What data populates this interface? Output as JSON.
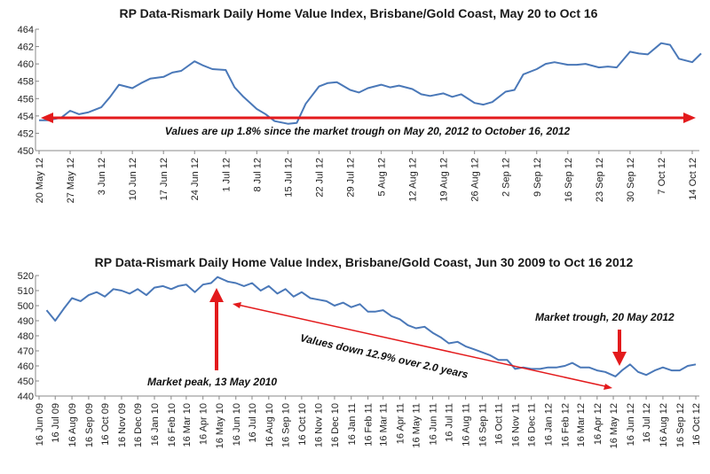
{
  "chart_data": [
    {
      "type": "line",
      "title": "RP Data-Rismark Daily Home Value Index, Brisbane/Gold Coast, May 20 to Oct 16",
      "xlabel": "",
      "ylabel": "",
      "ylim": [
        450,
        464
      ],
      "y_ticks": [
        "450",
        "452",
        "454",
        "456",
        "458",
        "460",
        "462",
        "464"
      ],
      "x_ticks": [
        "20 May 12",
        "27 May 12",
        "3 Jun 12",
        "10 Jun 12",
        "17 Jun 12",
        "24 Jun 12",
        "1 Jul 12",
        "8 Jul 12",
        "15 Jul 12",
        "22 Jul 12",
        "29 Jul 12",
        "5 Aug 12",
        "12 Aug 12",
        "19 Aug 12",
        "26 Aug 12",
        "2 Sep 12",
        "9 Sep 12",
        "16 Sep 12",
        "23 Sep 12",
        "30 Sep 12",
        "7 Oct 12",
        "14 Oct 12"
      ],
      "grid": false,
      "line_color": "#4a78b8",
      "series": [
        {
          "x": [
            "20 May 12",
            "22 May 12",
            "25 May 12",
            "27 May 12",
            "29 May 12",
            "31 May 12",
            "3 Jun 12",
            "5 Jun 12",
            "7 Jun 12",
            "10 Jun 12",
            "12 Jun 12",
            "14 Jun 12",
            "17 Jun 12",
            "19 Jun 12",
            "21 Jun 12",
            "24 Jun 12",
            "26 Jun 12",
            "28 Jun 12",
            "1 Jul 12",
            "3 Jul 12",
            "5 Jul 12",
            "8 Jul 12",
            "10 Jul 12",
            "12 Jul 12",
            "15 Jul 12",
            "17 Jul 12",
            "19 Jul 12",
            "22 Jul 12",
            "24 Jul 12",
            "26 Jul 12",
            "29 Jul 12",
            "31 Jul 12",
            "2 Aug 12",
            "5 Aug 12",
            "7 Aug 12",
            "9 Aug 12",
            "12 Aug 12",
            "14 Aug 12",
            "16 Aug 12",
            "19 Aug 12",
            "21 Aug 12",
            "23 Aug 12",
            "26 Aug 12",
            "28 Aug 12",
            "30 Aug 12",
            "2 Sep 12",
            "4 Sep 12",
            "6 Sep 12",
            "9 Sep 12",
            "11 Sep 12",
            "13 Sep 12",
            "16 Sep 12",
            "18 Sep 12",
            "20 Sep 12",
            "23 Sep 12",
            "25 Sep 12",
            "27 Sep 12",
            "30 Sep 12",
            "2 Oct 12",
            "4 Oct 12",
            "7 Oct 12",
            "9 Oct 12",
            "11 Oct 12",
            "14 Oct 12",
            "16 Oct 12"
          ],
          "values": [
            453.5,
            453.5,
            453.8,
            454.6,
            454.2,
            454.4,
            455.0,
            456.2,
            457.6,
            457.2,
            457.8,
            458.3,
            458.5,
            459.0,
            459.2,
            460.3,
            459.8,
            459.4,
            459.3,
            457.3,
            456.2,
            454.8,
            454.2,
            453.4,
            453.1,
            453.2,
            455.4,
            457.4,
            457.8,
            457.9,
            457.0,
            456.7,
            457.2,
            457.6,
            457.3,
            457.5,
            457.1,
            456.5,
            456.3,
            456.6,
            456.2,
            456.5,
            455.5,
            455.3,
            455.6,
            456.8,
            457.0,
            458.8,
            459.4,
            460.0,
            460.2,
            459.9,
            459.9,
            460.0,
            459.6,
            459.7,
            459.6,
            461.4,
            461.2,
            461.1,
            462.4,
            462.2,
            460.6,
            460.2,
            461.2
          ]
        }
      ],
      "annotations": [
        "Values are up 1.8% since the market trough on May 20, 2012 to October 16, 2012"
      ]
    },
    {
      "type": "line",
      "title": "RP Data-Rismark Daily Home Value Index, Brisbane/Gold Coast, Jun 30 2009 to Oct 16 2012",
      "xlabel": "",
      "ylabel": "",
      "ylim": [
        440,
        520
      ],
      "y_ticks": [
        "440",
        "450",
        "460",
        "470",
        "480",
        "490",
        "500",
        "510",
        "520"
      ],
      "x_ticks": [
        "16 Jun 09",
        "16 Jul 09",
        "16 Aug 09",
        "16 Sep 09",
        "16 Oct 09",
        "16 Nov 09",
        "16 Dec 09",
        "16 Jan 10",
        "16 Feb 10",
        "16 Mar 10",
        "16 Apr 10",
        "16 May 10",
        "16 Jun 10",
        "16 Jul 10",
        "16 Aug 10",
        "16 Sep 10",
        "16 Oct 10",
        "16 Nov 10",
        "16 Dec 10",
        "16 Jan 11",
        "16 Feb 11",
        "16 Mar 11",
        "16 Apr 11",
        "16 May 11",
        "16 Jun 11",
        "16 Jul 11",
        "16 Aug 11",
        "16 Sep 11",
        "16 Oct 11",
        "16 Nov 11",
        "16 Dec 11",
        "16 Jan 12",
        "16 Feb 12",
        "16 Mar 12",
        "16 Apr 12",
        "16 May 12",
        "16 Jun 12",
        "16 Jul 12",
        "16 Aug 12",
        "16 Sep 12",
        "16 Oct 12"
      ],
      "grid": false,
      "line_color": "#4a78b8",
      "series": [
        {
          "x": [
            "30 Jun 09",
            "16 Jul 09",
            "1 Aug 09",
            "16 Aug 09",
            "1 Sep 09",
            "16 Sep 09",
            "1 Oct 09",
            "16 Oct 09",
            "1 Nov 09",
            "16 Nov 09",
            "1 Dec 09",
            "16 Dec 09",
            "1 Jan 10",
            "16 Jan 10",
            "1 Feb 10",
            "16 Feb 10",
            "1 Mar 10",
            "16 Mar 10",
            "1 Apr 10",
            "16 Apr 10",
            "1 May 10",
            "13 May 10",
            "1 Jun 10",
            "16 Jun 10",
            "1 Jul 10",
            "16 Jul 10",
            "1 Aug 10",
            "16 Aug 10",
            "1 Sep 10",
            "16 Sep 10",
            "1 Oct 10",
            "16 Oct 10",
            "1 Nov 10",
            "16 Nov 10",
            "1 Dec 10",
            "16 Dec 10",
            "1 Jan 11",
            "16 Jan 11",
            "1 Feb 11",
            "16 Feb 11",
            "1 Mar 11",
            "16 Mar 11",
            "1 Apr 11",
            "16 Apr 11",
            "1 May 11",
            "16 May 11",
            "1 Jun 11",
            "16 Jun 11",
            "1 Jul 11",
            "16 Jul 11",
            "1 Aug 11",
            "16 Aug 11",
            "1 Sep 11",
            "16 Sep 11",
            "1 Oct 11",
            "16 Oct 11",
            "1 Nov 11",
            "16 Nov 11",
            "1 Dec 11",
            "16 Dec 11",
            "1 Jan 12",
            "16 Jan 12",
            "1 Feb 12",
            "16 Feb 12",
            "1 Mar 12",
            "16 Mar 12",
            "1 Apr 12",
            "16 Apr 12",
            "1 May 12",
            "20 May 12",
            "1 Jun 12",
            "16 Jun 12",
            "1 Jul 12",
            "16 Jul 12",
            "1 Aug 12",
            "16 Aug 12",
            "1 Sep 12",
            "16 Sep 12",
            "1 Oct 12",
            "16 Oct 12"
          ],
          "values": [
            497,
            490,
            498,
            505,
            503,
            507,
            509,
            506,
            511,
            510,
            508,
            511,
            507,
            512,
            513,
            511,
            513,
            514,
            509,
            514,
            515,
            519,
            516,
            515,
            513,
            515,
            510,
            513,
            508,
            511,
            506,
            509,
            505,
            504,
            503,
            500,
            502,
            499,
            501,
            496,
            496,
            497,
            493,
            491,
            487,
            485,
            486,
            482,
            479,
            475,
            476,
            473,
            471,
            469,
            467,
            464,
            464,
            458,
            459,
            458,
            458,
            459,
            459,
            460,
            462,
            459,
            459,
            457,
            456,
            453,
            457,
            461,
            456,
            454,
            457,
            459,
            457,
            457,
            460,
            461
          ]
        }
      ],
      "annotations": [
        "Market peak, 13 May 2010",
        "Market trough, 20 May 2012",
        "Values down 12.9% over 2.0 years"
      ]
    }
  ]
}
